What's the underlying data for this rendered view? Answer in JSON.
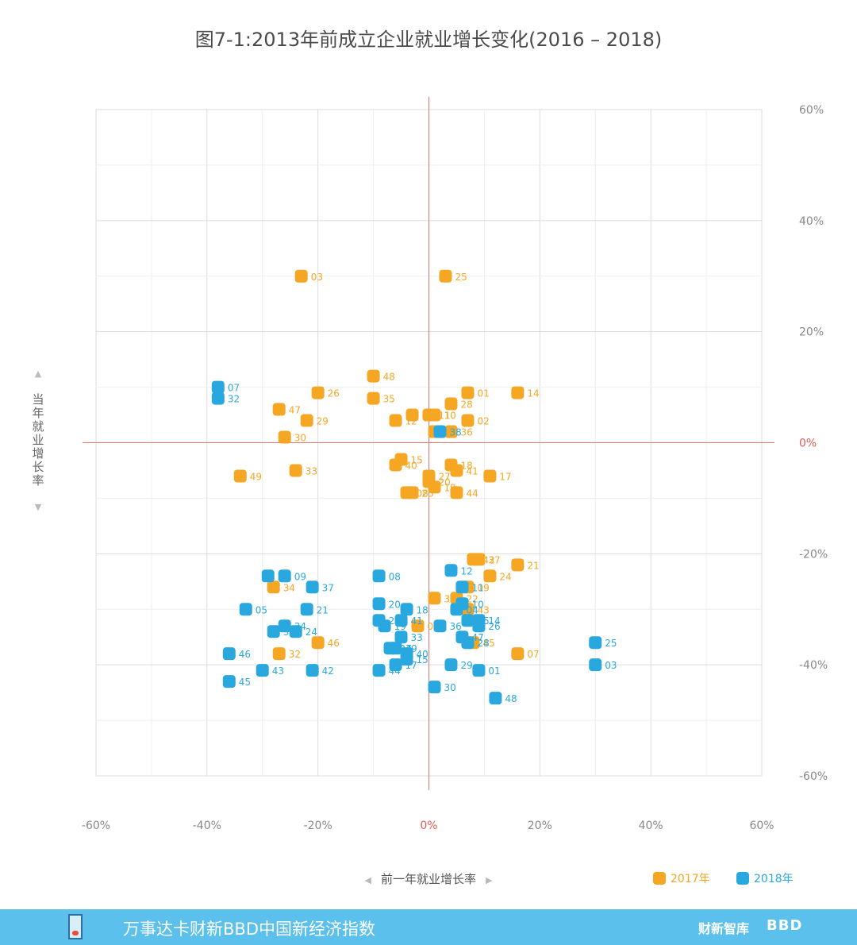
{
  "footer": {
    "title": "万事达卡财新BBD中国新经济指数",
    "brand_left": "财新智库",
    "brand_right": "BBD"
  },
  "chart_data": {
    "type": "scatter",
    "title": "图7-1:2013年前成立企业就业增长变化(2016 – 2018)",
    "xlabel": "前一年就业增长率",
    "ylabel": "当年就业增长率",
    "xlim": [
      -60,
      60
    ],
    "ylim": [
      -60,
      60
    ],
    "x_ticks": [
      "-60%",
      "-40%",
      "-20%",
      "0%",
      "20%",
      "40%",
      "60%"
    ],
    "y_ticks": [
      "60%",
      "40%",
      "20%",
      "0%",
      "-20%",
      "-40%",
      "-60%"
    ],
    "grid": true,
    "series": [
      {
        "name": "2017年",
        "color": "#f5a623",
        "points": [
          {
            "label": "01",
            "x": 7,
            "y": 9
          },
          {
            "label": "02",
            "x": 7,
            "y": 4
          },
          {
            "label": "03",
            "x": -23,
            "y": 30
          },
          {
            "label": "04",
            "x": -3,
            "y": 5
          },
          {
            "label": "05",
            "x": -2,
            "y": -33
          },
          {
            "label": "07",
            "x": 16,
            "y": -38
          },
          {
            "label": "08",
            "x": -4,
            "y": -9
          },
          {
            "label": "09",
            "x": 7,
            "y": -26
          },
          {
            "label": "10",
            "x": 1,
            "y": 5
          },
          {
            "label": "11",
            "x": 0,
            "y": 5
          },
          {
            "label": "12",
            "x": -6,
            "y": 4
          },
          {
            "label": "14",
            "x": 16,
            "y": 9
          },
          {
            "label": "15",
            "x": -5,
            "y": -3
          },
          {
            "label": "17",
            "x": 11,
            "y": -6
          },
          {
            "label": "18",
            "x": 4,
            "y": -4
          },
          {
            "label": "19",
            "x": 1,
            "y": -8
          },
          {
            "label": "20",
            "x": 0,
            "y": -7
          },
          {
            "label": "21",
            "x": 16,
            "y": -22
          },
          {
            "label": "22",
            "x": 5,
            "y": -28
          },
          {
            "label": "23",
            "x": -3,
            "y": -9
          },
          {
            "label": "24",
            "x": 11,
            "y": -24
          },
          {
            "label": "25",
            "x": 3,
            "y": 30
          },
          {
            "label": "26",
            "x": -20,
            "y": 9
          },
          {
            "label": "27",
            "x": 0,
            "y": -6
          },
          {
            "label": "28",
            "x": 4,
            "y": 7
          },
          {
            "label": "29",
            "x": -22,
            "y": 4
          },
          {
            "label": "30",
            "x": -26,
            "y": 1
          },
          {
            "label": "31",
            "x": 1,
            "y": -28
          },
          {
            "label": "32",
            "x": -27,
            "y": -38
          },
          {
            "label": "33",
            "x": -24,
            "y": -5
          },
          {
            "label": "34",
            "x": -28,
            "y": -26
          },
          {
            "label": "35",
            "x": -10,
            "y": 8
          },
          {
            "label": "36",
            "x": 4,
            "y": 2
          },
          {
            "label": "37",
            "x": 9,
            "y": -21
          },
          {
            "label": "38",
            "x": 1,
            "y": 2
          },
          {
            "label": "40",
            "x": -6,
            "y": -4
          },
          {
            "label": "41",
            "x": 5,
            "y": -5
          },
          {
            "label": "42",
            "x": 8,
            "y": -21
          },
          {
            "label": "43",
            "x": 7,
            "y": -30
          },
          {
            "label": "44",
            "x": 5,
            "y": -9
          },
          {
            "label": "45",
            "x": 8,
            "y": -36
          },
          {
            "label": "46",
            "x": -20,
            "y": -36
          },
          {
            "label": "47",
            "x": -27,
            "y": 6
          },
          {
            "label": "48",
            "x": -10,
            "y": 12
          },
          {
            "label": "49",
            "x": -34,
            "y": -6
          }
        ]
      },
      {
        "name": "2018年",
        "color": "#29a8e0",
        "points": [
          {
            "label": "01",
            "x": 9,
            "y": -41
          },
          {
            "label": "03",
            "x": 30,
            "y": -40
          },
          {
            "label": "04",
            "x": 5,
            "y": -30
          },
          {
            "label": "05",
            "x": -33,
            "y": -30
          },
          {
            "label": "07",
            "x": -38,
            "y": 10
          },
          {
            "label": "08",
            "x": -9,
            "y": -24
          },
          {
            "label": "09",
            "x": -26,
            "y": -24
          },
          {
            "label": "10",
            "x": 6,
            "y": -29
          },
          {
            "label": "11",
            "x": 6,
            "y": -26
          },
          {
            "label": "12",
            "x": 4,
            "y": -23
          },
          {
            "label": "14",
            "x": 9,
            "y": -32
          },
          {
            "label": "15",
            "x": -4,
            "y": -39
          },
          {
            "label": "17",
            "x": -6,
            "y": -40
          },
          {
            "label": "18",
            "x": -4,
            "y": -30
          },
          {
            "label": "19",
            "x": -8,
            "y": -33
          },
          {
            "label": "20",
            "x": -9,
            "y": -29
          },
          {
            "label": "21",
            "x": -22,
            "y": -30
          },
          {
            "label": "22",
            "x": -29,
            "y": -24
          },
          {
            "label": "23",
            "x": -9,
            "y": -32
          },
          {
            "label": "24",
            "x": -24,
            "y": -34
          },
          {
            "label": "25",
            "x": 30,
            "y": -36
          },
          {
            "label": "26",
            "x": 9,
            "y": -33
          },
          {
            "label": "27",
            "x": -7,
            "y": -37
          },
          {
            "label": "28",
            "x": 7,
            "y": -36
          },
          {
            "label": "29",
            "x": 4,
            "y": -40
          },
          {
            "label": "30",
            "x": 1,
            "y": -44
          },
          {
            "label": "31",
            "x": -28,
            "y": -34
          },
          {
            "label": "32",
            "x": -38,
            "y": 8
          },
          {
            "label": "33",
            "x": -5,
            "y": -35
          },
          {
            "label": "34",
            "x": -26,
            "y": -33
          },
          {
            "label": "35",
            "x": 7,
            "y": -32
          },
          {
            "label": "36",
            "x": 2,
            "y": -33
          },
          {
            "label": "37",
            "x": -21,
            "y": -26
          },
          {
            "label": "38",
            "x": 2,
            "y": 2
          },
          {
            "label": "40",
            "x": -4,
            "y": -38
          },
          {
            "label": "41",
            "x": -5,
            "y": -32
          },
          {
            "label": "42",
            "x": -21,
            "y": -41
          },
          {
            "label": "43",
            "x": -30,
            "y": -41
          },
          {
            "label": "44",
            "x": -9,
            "y": -41
          },
          {
            "label": "45",
            "x": -36,
            "y": -43
          },
          {
            "label": "46",
            "x": -36,
            "y": -38
          },
          {
            "label": "47",
            "x": 6,
            "y": -35
          },
          {
            "label": "48",
            "x": 12,
            "y": -46
          },
          {
            "label": "49",
            "x": -6,
            "y": -37
          }
        ]
      }
    ]
  }
}
